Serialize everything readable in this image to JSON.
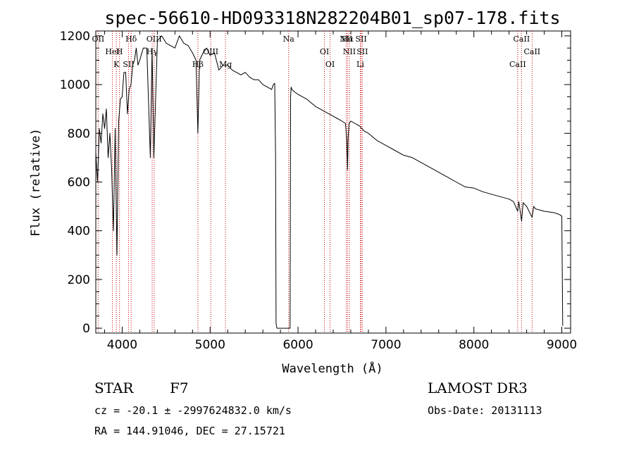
{
  "chart_data": {
    "type": "line",
    "title": "spec-56610-HD093318N282204B01_sp07-178.fits",
    "xlabel": "Wavelength (Å)",
    "ylabel": "Flux (relative)",
    "xlim": [
      3700,
      9100
    ],
    "ylim": [
      -20,
      1220
    ],
    "xticks": [
      4000,
      5000,
      6000,
      7000,
      8000,
      9000
    ],
    "yticks": [
      0,
      200,
      400,
      600,
      800,
      1000,
      1200
    ],
    "grid": false,
    "series": [
      {
        "name": "spectrum",
        "x": [
          3700,
          3720,
          3740,
          3760,
          3780,
          3800,
          3820,
          3840,
          3860,
          3880,
          3900,
          3920,
          3940,
          3960,
          3980,
          4000,
          4020,
          4040,
          4060,
          4080,
          4100,
          4120,
          4140,
          4160,
          4180,
          4200,
          4240,
          4280,
          4320,
          4340,
          4360,
          4400,
          4450,
          4500,
          4550,
          4600,
          4650,
          4700,
          4750,
          4800,
          4840,
          4861,
          4880,
          4920,
          4960,
          5000,
          5050,
          5100,
          5150,
          5200,
          5250,
          5300,
          5350,
          5400,
          5450,
          5500,
          5550,
          5600,
          5650,
          5700,
          5720,
          5735,
          5745,
          5750,
          5760,
          5780,
          5800,
          5850,
          5880,
          5910,
          5915,
          5922,
          5930,
          5960,
          6000,
          6050,
          6100,
          6150,
          6200,
          6250,
          6300,
          6350,
          6400,
          6450,
          6500,
          6540,
          6555,
          6563,
          6570,
          6580,
          6600,
          6650,
          6700,
          6750,
          6800,
          6900,
          7000,
          7100,
          7200,
          7300,
          7400,
          7500,
          7600,
          7700,
          7800,
          7900,
          8000,
          8100,
          8200,
          8300,
          8400,
          8450,
          8498,
          8510,
          8542,
          8560,
          8600,
          8662,
          8680,
          8700,
          8800,
          8900,
          8950,
          8980,
          9000,
          9010
        ],
        "y": [
          720,
          600,
          820,
          760,
          880,
          820,
          900,
          700,
          800,
          650,
          400,
          820,
          300,
          850,
          940,
          950,
          1050,
          1050,
          880,
          980,
          1000,
          1080,
          1100,
          1150,
          1080,
          1100,
          1150,
          1150,
          700,
          1150,
          700,
          1180,
          1200,
          1170,
          1160,
          1150,
          1200,
          1170,
          1160,
          1130,
          1100,
          800,
          1100,
          1130,
          1150,
          1120,
          1130,
          1060,
          1080,
          1080,
          1060,
          1050,
          1040,
          1050,
          1030,
          1020,
          1020,
          1000,
          990,
          980,
          1000,
          1005,
          700,
          20,
          0,
          0,
          0,
          0,
          0,
          0,
          950,
          990,
          980,
          970,
          960,
          950,
          940,
          925,
          910,
          900,
          890,
          880,
          870,
          860,
          850,
          840,
          770,
          650,
          780,
          840,
          850,
          840,
          830,
          810,
          800,
          770,
          750,
          730,
          710,
          700,
          680,
          660,
          640,
          620,
          600,
          580,
          575,
          560,
          550,
          540,
          530,
          520,
          480,
          520,
          440,
          515,
          500,
          455,
          500,
          490,
          480,
          475,
          470,
          465,
          460,
          10
        ],
        "color": "#000000"
      }
    ],
    "lines": [
      {
        "name": "Hδ",
        "x": 4102
      },
      {
        "name": "Hγ",
        "x": 4341
      },
      {
        "name": "Hβ",
        "x": 4861
      },
      {
        "name": "Hα",
        "x": 6563
      },
      {
        "name": "H",
        "x": 3970
      },
      {
        "name": "K",
        "x": 3934
      },
      {
        "name": "OII",
        "x": 3727
      },
      {
        "name": "HeI",
        "x": 3889
      },
      {
        "name": "SII",
        "x": 4072
      },
      {
        "name": "OIII",
        "x": 4363
      },
      {
        "name": "OIII",
        "x": 5007
      },
      {
        "name": "Mg",
        "x": 5175
      },
      {
        "name": "Na",
        "x": 5893
      },
      {
        "name": "OI",
        "x": 6300
      },
      {
        "name": "OI",
        "x": 6364
      },
      {
        "name": "NII",
        "x": 6548
      },
      {
        "name": "NII",
        "x": 6584
      },
      {
        "name": "Li",
        "x": 6708
      },
      {
        "name": "SII",
        "x": 6717
      },
      {
        "name": "SII",
        "x": 6731
      },
      {
        "name": "CaII",
        "x": 8498
      },
      {
        "name": "CaII",
        "x": 8542
      },
      {
        "name": "CaII",
        "x": 8662
      }
    ],
    "line_color": "#cc0000"
  },
  "info": {
    "object_class": "STAR",
    "subclass": "F7",
    "survey": "LAMOST DR3",
    "cz": "cz = -20.1 ± -2997624832.0 km/s",
    "obs_date": "Obs-Date: 20131113",
    "coords": "RA = 144.91046, DEC =  27.15721"
  }
}
